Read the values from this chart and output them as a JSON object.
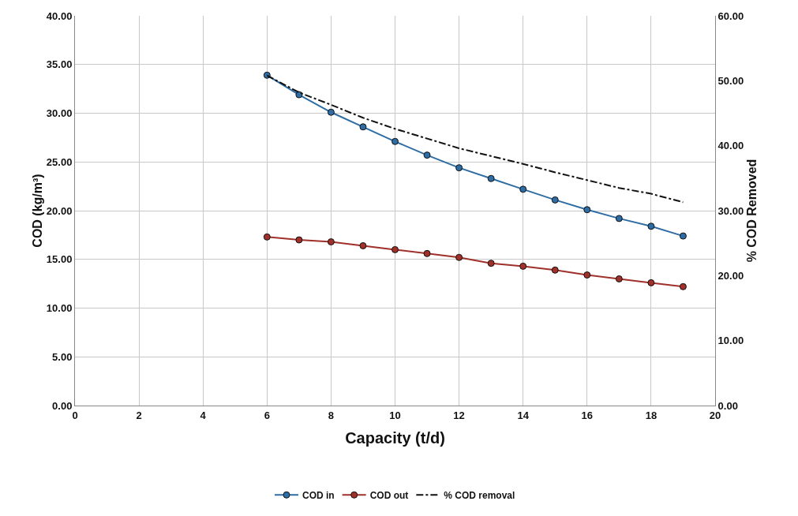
{
  "chart_data": {
    "type": "line",
    "xlabel": "Capacity (t/d)",
    "ylabel": "COD (kg/m³)",
    "y2label": "% COD Removed",
    "x": [
      6,
      7,
      8,
      9,
      10,
      11,
      12,
      13,
      14,
      15,
      16,
      17,
      18,
      19
    ],
    "series": [
      {
        "name": "COD in",
        "color": "#2e6da4",
        "marker": "circle",
        "line_style": "solid",
        "values": [
          33.9,
          31.9,
          30.1,
          28.6,
          27.1,
          25.7,
          24.4,
          23.3,
          22.2,
          21.1,
          20.1,
          19.2,
          18.4,
          17.4
        ]
      },
      {
        "name": "COD out",
        "color": "#a0302a",
        "marker": "circle",
        "line_style": "solid",
        "values": [
          17.3,
          17.0,
          16.8,
          16.4,
          16.0,
          15.6,
          15.2,
          14.6,
          14.3,
          13.9,
          13.4,
          13.0,
          12.6,
          12.2
        ]
      },
      {
        "name": "% COD removal",
        "color": "#111111",
        "marker": "none",
        "line_style": "dashdot",
        "axis": "y2",
        "values": [
          50.8,
          48.2,
          46.3,
          44.3,
          42.6,
          41.1,
          39.6,
          38.4,
          37.2,
          35.9,
          34.7,
          33.5,
          32.6,
          31.3
        ]
      }
    ],
    "xlim": [
      0,
      20
    ],
    "xticks": [
      0,
      2,
      4,
      6,
      8,
      10,
      12,
      14,
      16,
      18,
      20
    ],
    "ylim": [
      0,
      40
    ],
    "yticks": [
      {
        "value": 0,
        "label": "0.00"
      },
      {
        "value": 5,
        "label": "5.00"
      },
      {
        "value": 10,
        "label": "10.00"
      },
      {
        "value": 15,
        "label": "15.00"
      },
      {
        "value": 20,
        "label": "20.00"
      },
      {
        "value": 25,
        "label": "25.00"
      },
      {
        "value": 30,
        "label": "30.00"
      },
      {
        "value": 35,
        "label": "35.00"
      },
      {
        "value": 40,
        "label": "40.00"
      }
    ],
    "y2lim": [
      0,
      60
    ],
    "y2ticks": [
      {
        "value": 0,
        "label": "0.00"
      },
      {
        "value": 10,
        "label": "10.00"
      },
      {
        "value": 20,
        "label": "20.00"
      },
      {
        "value": 30,
        "label": "30.00"
      },
      {
        "value": 40,
        "label": "40.00"
      },
      {
        "value": 50,
        "label": "50.00"
      },
      {
        "value": 60,
        "label": "60.00"
      }
    ],
    "grid": true,
    "legend": "bottom"
  }
}
